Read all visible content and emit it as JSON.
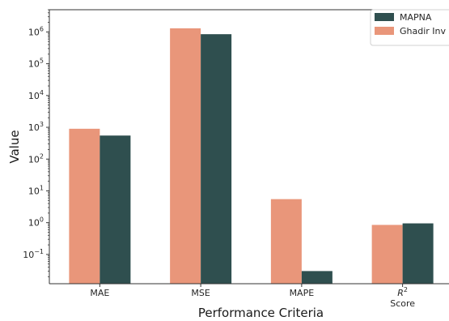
{
  "chart_data": {
    "type": "bar",
    "xlabel": "Performance Criteria",
    "ylabel": "Value",
    "yscale": "log",
    "ylim": [
      0.012,
      5000000
    ],
    "yticks": [
      {
        "exp": -1,
        "base": "10",
        "sup": "−1"
      },
      {
        "exp": 0,
        "base": "10",
        "sup": "0"
      },
      {
        "exp": 1,
        "base": "10",
        "sup": "1"
      },
      {
        "exp": 2,
        "base": "10",
        "sup": "2"
      },
      {
        "exp": 3,
        "base": "10",
        "sup": "3"
      },
      {
        "exp": 4,
        "base": "10",
        "sup": "4"
      },
      {
        "exp": 5,
        "base": "10",
        "sup": "5"
      },
      {
        "exp": 6,
        "base": "10",
        "sup": "6"
      }
    ],
    "categories": [
      {
        "label": "MAE",
        "sup": "",
        "line2": ""
      },
      {
        "label": "MSE",
        "sup": "",
        "line2": ""
      },
      {
        "label": "MAPE",
        "sup": "",
        "line2": ""
      },
      {
        "label": "R",
        "sup": "2",
        "line2": "Score"
      }
    ],
    "series": [
      {
        "name": "Ghadir Inv",
        "color": "#E9967A",
        "values": [
          900,
          1300000,
          5.5,
          0.85
        ]
      },
      {
        "name": "MAPNA",
        "color": "#2F4F4F",
        "values": [
          550,
          850000,
          0.03,
          0.95
        ]
      }
    ],
    "legend": {
      "position": "top-right",
      "order": [
        1,
        0
      ]
    },
    "grid": false
  }
}
